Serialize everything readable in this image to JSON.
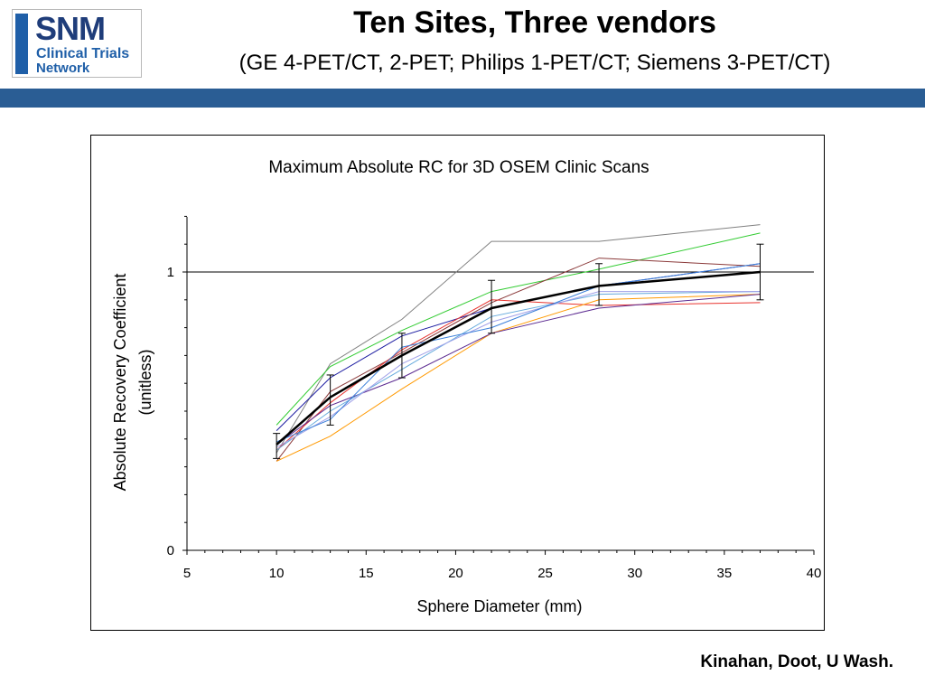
{
  "logo": {
    "line1": "SNM",
    "line2": "Clinical Trials",
    "line3": "Network"
  },
  "slide": {
    "title": "Ten Sites, Three vendors",
    "subtitle": "(GE 4-PET/CT, 2-PET; Philips 1-PET/CT; Siemens 3-PET/CT)",
    "credit": "Kinahan, Doot, U Wash."
  },
  "colors": {
    "header_bar": "#2a5d94",
    "mean_line": "#000000",
    "reference_line": "#000000"
  },
  "chart_data": {
    "type": "line",
    "title": "Maximum Absolute RC for 3D OSEM Clinic Scans",
    "xlabel": "Sphere Diameter (mm)",
    "ylabel": "Absolute Recovery Coefficient",
    "ylabel_unit": "(unitless)",
    "xlim": [
      5,
      40
    ],
    "ylim": [
      0,
      1.2
    ],
    "xticks": [
      5,
      10,
      15,
      20,
      25,
      30,
      35,
      40
    ],
    "xtick_labels": [
      "5",
      "10",
      "15",
      "20",
      "25",
      "30",
      "35",
      "40"
    ],
    "yticks": [
      0,
      1
    ],
    "ytick_labels": [
      "0",
      "1"
    ],
    "reference_line_y": 1,
    "legend": "none",
    "x": [
      10,
      13,
      17,
      22,
      28,
      37
    ],
    "series": [
      {
        "color": "#808080",
        "values": [
          0.35,
          0.67,
          0.83,
          1.11,
          1.11,
          1.17
        ]
      },
      {
        "color": "#33cc33",
        "values": [
          0.45,
          0.66,
          0.79,
          0.93,
          1.01,
          1.14
        ]
      },
      {
        "color": "#1a1aa0",
        "values": [
          0.43,
          0.62,
          0.77,
          0.87,
          0.95,
          1.03
        ]
      },
      {
        "color": "#8b3a3a",
        "values": [
          0.32,
          0.57,
          0.71,
          0.89,
          1.05,
          1.02
        ]
      },
      {
        "color": "#e8332e",
        "values": [
          0.36,
          0.53,
          0.72,
          0.9,
          0.88,
          0.89
        ]
      },
      {
        "color": "#ff9900",
        "values": [
          0.32,
          0.41,
          0.58,
          0.78,
          0.9,
          0.92
        ]
      },
      {
        "color": "#5c2b91",
        "values": [
          0.38,
          0.52,
          0.62,
          0.78,
          0.87,
          0.92
        ]
      },
      {
        "color": "#66aadd",
        "values": [
          0.36,
          0.5,
          0.65,
          0.84,
          0.92,
          0.93
        ]
      },
      {
        "color": "#a0a0e8",
        "values": [
          0.37,
          0.48,
          0.67,
          0.82,
          0.93,
          0.93
        ]
      },
      {
        "color": "#3a7fd9",
        "values": [
          0.39,
          0.47,
          0.73,
          0.8,
          0.95,
          1.03
        ]
      }
    ],
    "mean": {
      "values": [
        0.38,
        0.55,
        0.7,
        0.87,
        0.95,
        1.0
      ],
      "err_low": [
        0.33,
        0.45,
        0.62,
        0.78,
        0.88,
        0.9
      ],
      "err_high": [
        0.42,
        0.63,
        0.78,
        0.97,
        1.03,
        1.1
      ]
    }
  }
}
